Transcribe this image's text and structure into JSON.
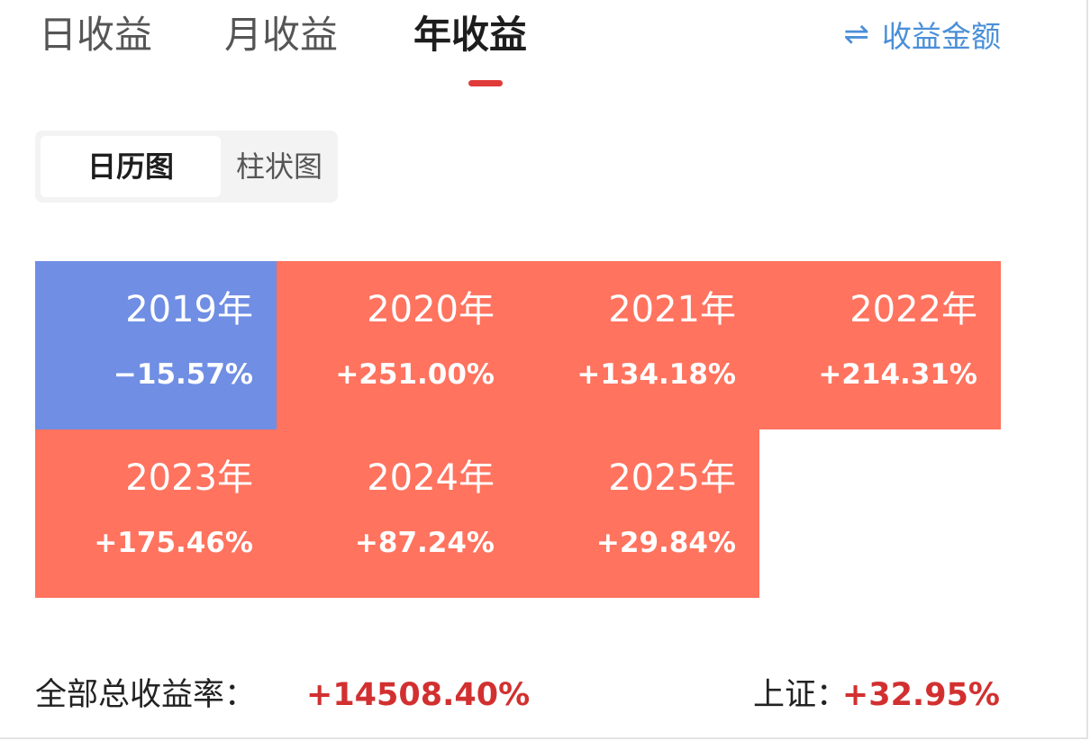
{
  "tabs": [
    {
      "label": "日收益",
      "active": false
    },
    {
      "label": "月收益",
      "active": false
    },
    {
      "label": "年收益",
      "active": true
    }
  ],
  "toggle": {
    "icon": "swap-arrows-icon",
    "glyph": "⇌",
    "label": "收益金额"
  },
  "view_switch": {
    "active_label": "日历图",
    "inactive_label": "柱状图"
  },
  "colors": {
    "positive": "#ff735f",
    "negative": "#6f8ee4",
    "value_red": "#d23030",
    "link_blue": "#4a8fd8"
  },
  "years": [
    {
      "year": "2019年",
      "return": "−15.57%",
      "value": -15.57
    },
    {
      "year": "2020年",
      "return": "+251.00%",
      "value": 251.0
    },
    {
      "year": "2021年",
      "return": "+134.18%",
      "value": 134.18
    },
    {
      "year": "2022年",
      "return": "+214.31%",
      "value": 214.31
    },
    {
      "year": "2023年",
      "return": "+175.46%",
      "value": 175.46
    },
    {
      "year": "2024年",
      "return": "+87.24%",
      "value": 87.24
    },
    {
      "year": "2025年",
      "return": "+29.84%",
      "value": 29.84
    }
  ],
  "summary": {
    "total_label": "全部总收益率：",
    "total_value": "+14508.40%",
    "index_label": "上证：",
    "index_value": "+32.95%"
  }
}
